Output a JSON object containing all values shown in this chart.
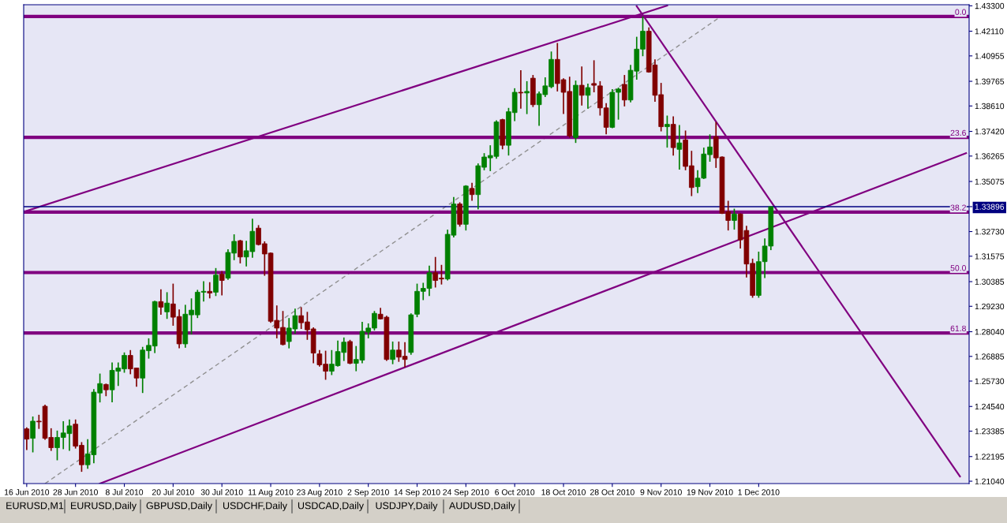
{
  "chart_data": {
    "type": "candlestick",
    "categories": [
      "16 Jun 2010",
      null,
      null,
      null,
      null,
      null,
      null,
      null,
      "28 Jun 2010",
      null,
      null,
      null,
      null,
      null,
      null,
      null,
      "8 Jul 2010",
      null,
      null,
      null,
      null,
      null,
      null,
      null,
      "20 Jul 2010",
      null,
      null,
      null,
      null,
      null,
      null,
      null,
      "30 Jul 2010",
      null,
      null,
      null,
      null,
      null,
      null,
      null,
      "11 Aug 2010",
      null,
      null,
      null,
      null,
      null,
      null,
      null,
      "23 Aug 2010",
      null,
      null,
      null,
      null,
      null,
      null,
      null,
      "2 Sep 2010",
      null,
      null,
      null,
      null,
      null,
      null,
      null,
      "14 Sep 2010",
      null,
      null,
      null,
      null,
      null,
      null,
      null,
      "24 Sep 2010",
      null,
      null,
      null,
      null,
      null,
      null,
      null,
      "6 Oct 2010",
      null,
      null,
      null,
      null,
      null,
      null,
      null,
      "18 Oct 2010",
      null,
      null,
      null,
      null,
      null,
      null,
      null,
      "28 Oct 2010",
      null,
      null,
      null,
      null,
      null,
      null,
      null,
      "9 Nov 2010",
      null,
      null,
      null,
      null,
      null,
      null,
      null,
      "19 Nov 2010",
      null,
      null,
      null,
      null,
      null,
      null,
      null,
      "1 Dec 2010",
      null,
      null,
      null,
      null,
      null,
      null,
      null,
      null,
      null,
      null,
      null,
      null,
      null,
      null,
      null,
      null,
      null,
      null,
      null,
      null,
      null,
      null,
      null,
      null,
      null,
      null,
      null,
      null,
      null,
      null,
      null,
      null,
      null,
      null
    ],
    "ohlc": [
      [
        1.2349,
        1.2356,
        1.225,
        1.2301
      ],
      [
        1.2305,
        1.2407,
        1.2239,
        1.2385
      ],
      [
        1.2385,
        1.2415,
        1.2349,
        1.2382
      ],
      [
        1.2455,
        1.2462,
        1.2298,
        1.2305
      ],
      [
        1.2309,
        1.2352,
        1.2246,
        1.2261
      ],
      [
        1.2261,
        1.2341,
        1.2202,
        1.2309
      ],
      [
        1.2309,
        1.2385,
        1.2254,
        1.233
      ],
      [
        1.2327,
        1.2393,
        1.2246,
        1.2363
      ],
      [
        1.2371,
        1.2393,
        1.2257,
        1.2268
      ],
      [
        1.2272,
        1.2287,
        1.2148,
        1.2181
      ],
      [
        1.2181,
        1.2301,
        1.2162,
        1.2232
      ],
      [
        1.2228,
        1.2535,
        1.2188,
        1.2521
      ],
      [
        1.2517,
        1.2608,
        1.2473,
        1.2561
      ],
      [
        1.2557,
        1.2561,
        1.2502,
        1.2532
      ],
      [
        1.2532,
        1.266,
        1.2473,
        1.2623
      ],
      [
        1.2619,
        1.266,
        1.255,
        1.2634
      ],
      [
        1.263,
        1.2707,
        1.2612,
        1.2693
      ],
      [
        1.2693,
        1.2718,
        1.2605,
        1.263
      ],
      [
        1.2634,
        1.2634,
        1.2546,
        1.2587
      ],
      [
        1.2587,
        1.2733,
        1.2517,
        1.2718
      ],
      [
        1.2715,
        1.2773,
        1.2678,
        1.274
      ],
      [
        1.2737,
        1.2949,
        1.2704,
        1.2945
      ],
      [
        1.2945,
        1.3003,
        1.2883,
        1.2919
      ],
      [
        1.2897,
        1.2989,
        1.2864,
        1.2938
      ],
      [
        1.2934,
        1.3029,
        1.2832,
        1.2872
      ],
      [
        1.2875,
        1.2908,
        1.2726,
        1.2747
      ],
      [
        1.2747,
        1.293,
        1.2729,
        1.2886
      ],
      [
        1.2883,
        1.296,
        1.2791,
        1.2905
      ],
      [
        1.2883,
        1.3,
        1.2868,
        1.2989
      ],
      [
        1.2989,
        1.304,
        1.2945,
        1.2993
      ],
      [
        1.2993,
        1.3036,
        1.296,
        1.2985
      ],
      [
        1.2989,
        1.3102,
        1.2971,
        1.3069
      ],
      [
        1.3073,
        1.3088,
        1.2974,
        1.3044
      ],
      [
        1.3055,
        1.319,
        1.3047,
        1.3175
      ],
      [
        1.3172,
        1.326,
        1.3139,
        1.3227
      ],
      [
        1.323,
        1.3234,
        1.3124,
        1.3154
      ],
      [
        1.3154,
        1.323,
        1.311,
        1.3183
      ],
      [
        1.3179,
        1.3333,
        1.315,
        1.3274
      ],
      [
        1.3289,
        1.3303,
        1.3208,
        1.3212
      ],
      [
        1.3216,
        1.3227,
        1.3066,
        1.3168
      ],
      [
        1.3172,
        1.3175,
        1.2846,
        1.2853
      ],
      [
        1.2857,
        1.2927,
        1.2773,
        1.2821
      ],
      [
        1.2824,
        1.2901,
        1.274,
        1.2744
      ],
      [
        1.2758,
        1.2868,
        1.2726,
        1.2821
      ],
      [
        1.2817,
        1.2912,
        1.2795,
        1.2879
      ],
      [
        1.2879,
        1.2919,
        1.2817,
        1.2846
      ],
      [
        1.285,
        1.2897,
        1.2766,
        1.2813
      ],
      [
        1.2817,
        1.2824,
        1.2656,
        1.2704
      ],
      [
        1.27,
        1.2718,
        1.2641,
        1.2649
      ],
      [
        1.2652,
        1.2715,
        1.2579,
        1.2619
      ],
      [
        1.2619,
        1.2718,
        1.2601,
        1.2652
      ],
      [
        1.2645,
        1.2762,
        1.2641,
        1.2711
      ],
      [
        1.2707,
        1.2777,
        1.2667,
        1.2755
      ],
      [
        1.2758,
        1.2766,
        1.2652,
        1.2656
      ],
      [
        1.2656,
        1.2737,
        1.2619,
        1.2674
      ],
      [
        1.2671,
        1.285,
        1.2656,
        1.2806
      ],
      [
        1.2802,
        1.2843,
        1.2773,
        1.2821
      ],
      [
        1.2821,
        1.2901,
        1.281,
        1.289
      ],
      [
        1.2886,
        1.2916,
        1.2861,
        1.2864
      ],
      [
        1.2872,
        1.2879,
        1.2667,
        1.2674
      ],
      [
        1.2674,
        1.2758,
        1.2652,
        1.2718
      ],
      [
        1.2718,
        1.2758,
        1.2663,
        1.2685
      ],
      [
        1.2689,
        1.2755,
        1.2638,
        1.2674
      ],
      [
        1.2707,
        1.289,
        1.2696,
        1.2883
      ],
      [
        1.2886,
        1.3029,
        1.2872,
        1.2993
      ],
      [
        1.2993,
        1.3033,
        1.2952,
        1.3007
      ],
      [
        1.3007,
        1.3113,
        1.2971,
        1.308
      ],
      [
        1.308,
        1.3154,
        1.3011,
        1.3044
      ],
      [
        1.3055,
        1.3117,
        1.3025,
        1.3051
      ],
      [
        1.3051,
        1.3282,
        1.3044,
        1.326
      ],
      [
        1.3256,
        1.3435,
        1.3245,
        1.3402
      ],
      [
        1.3402,
        1.341,
        1.3296,
        1.3307
      ],
      [
        1.3307,
        1.349,
        1.3278,
        1.3486
      ],
      [
        1.3475,
        1.3501,
        1.3417,
        1.3446
      ],
      [
        1.3446,
        1.3592,
        1.3377,
        1.3581
      ],
      [
        1.3574,
        1.364,
        1.356,
        1.3622
      ],
      [
        1.3618,
        1.3677,
        1.3556,
        1.3629
      ],
      [
        1.3625,
        1.3794,
        1.3614,
        1.3786
      ],
      [
        1.3797,
        1.3801,
        1.3658,
        1.3677
      ],
      [
        1.3677,
        1.3852,
        1.3629,
        1.3834
      ],
      [
        1.383,
        1.3944,
        1.379,
        1.3925
      ],
      [
        1.3925,
        1.4028,
        1.3848,
        1.3922
      ],
      [
        1.3922,
        1.3977,
        1.3823,
        1.3929
      ],
      [
        1.3991,
        1.4006,
        1.3856,
        1.3867
      ],
      [
        1.3867,
        1.3929,
        1.3768,
        1.3918
      ],
      [
        1.3914,
        1.3995,
        1.3903,
        1.3955
      ],
      [
        1.3951,
        1.4116,
        1.3944,
        1.4079
      ],
      [
        1.4079,
        1.4156,
        1.3929,
        1.3966
      ],
      [
        1.3984,
        1.3991,
        1.3823,
        1.3925
      ],
      [
        1.3929,
        1.3998,
        1.3713,
        1.3721
      ],
      [
        1.3713,
        1.398,
        1.3688,
        1.3958
      ],
      [
        1.3958,
        1.4046,
        1.3863,
        1.3911
      ],
      [
        1.3911,
        1.3966,
        1.3848,
        1.3947
      ],
      [
        1.3966,
        1.4075,
        1.3925,
        1.3958
      ],
      [
        1.3955,
        1.3977,
        1.3816,
        1.3852
      ],
      [
        1.3852,
        1.3874,
        1.3728,
        1.3761
      ],
      [
        1.3761,
        1.394,
        1.3757,
        1.3925
      ],
      [
        1.3925,
        1.3947,
        1.3797,
        1.394
      ],
      [
        1.3962,
        1.4006,
        1.3859,
        1.3889
      ],
      [
        1.3889,
        1.4053,
        1.3878,
        1.4028
      ],
      [
        1.4024,
        1.4185,
        1.3984,
        1.4127
      ],
      [
        1.4127,
        1.428,
        1.4094,
        1.4211
      ],
      [
        1.4211,
        1.4229,
        1.4017,
        1.402
      ],
      [
        1.4053,
        1.4079,
        1.3881,
        1.3911
      ],
      [
        1.3914,
        1.3969,
        1.3742,
        1.3764
      ],
      [
        1.3764,
        1.3816,
        1.3666,
        1.3775
      ],
      [
        1.3775,
        1.3812,
        1.3629,
        1.3666
      ],
      [
        1.3658,
        1.3772,
        1.3563,
        1.3688
      ],
      [
        1.3702,
        1.3746,
        1.356,
        1.3578
      ],
      [
        1.3581,
        1.3651,
        1.3439,
        1.3479
      ],
      [
        1.3483,
        1.356,
        1.3453,
        1.3523
      ],
      [
        1.3523,
        1.3666,
        1.3519,
        1.3636
      ],
      [
        1.3633,
        1.3728,
        1.36,
        1.3669
      ],
      [
        1.3717,
        1.3786,
        1.3571,
        1.3618
      ],
      [
        1.3622,
        1.3625,
        1.3355,
        1.3358
      ],
      [
        1.3366,
        1.3417,
        1.3278,
        1.3325
      ],
      [
        1.3325,
        1.338,
        1.3282,
        1.3355
      ],
      [
        1.3355,
        1.3358,
        1.3194,
        1.3234
      ],
      [
        1.3278,
        1.33,
        1.3058,
        1.3121
      ],
      [
        1.3124,
        1.3146,
        1.2963,
        1.2974
      ],
      [
        1.2974,
        1.3179,
        1.2963,
        1.3132
      ],
      [
        1.3132,
        1.3241,
        1.3055,
        1.3205
      ],
      [
        1.3205,
        1.33896,
        1.3186,
        1.33896
      ],
      null,
      null,
      null,
      null,
      null,
      null,
      null,
      null,
      null,
      null,
      null,
      null,
      null,
      null,
      null,
      null,
      null,
      null,
      null,
      null,
      null,
      null,
      null,
      null,
      null,
      null,
      null,
      null,
      null,
      null,
      null,
      null
    ],
    "series": [
      {
        "type": "line",
        "color": "#800080",
        "line_style": "solid",
        "values": [
          1.337,
          null,
          null,
          null,
          null,
          null,
          null,
          null,
          null,
          null,
          null,
          null,
          null,
          null,
          null,
          null,
          null,
          null,
          null,
          null,
          null,
          null,
          null,
          null,
          null,
          null,
          null,
          null,
          null,
          null,
          null,
          null,
          null,
          null,
          null,
          null,
          null,
          null,
          null,
          null,
          null,
          null,
          null,
          null,
          null,
          null,
          null,
          null,
          null,
          null,
          null,
          null,
          null,
          null,
          null,
          null,
          null,
          null,
          null,
          null,
          null,
          null,
          null,
          null,
          null,
          null,
          null,
          null,
          null,
          null,
          null,
          null,
          null,
          null,
          null,
          null,
          null,
          null,
          null,
          null,
          null,
          null,
          null,
          null,
          null,
          null,
          null,
          null,
          null,
          null,
          null,
          null,
          null,
          null,
          null,
          null,
          null,
          null,
          null,
          null,
          null,
          null,
          null,
          null,
          null,
          1.4331,
          null,
          null,
          null,
          null,
          null,
          null,
          null,
          null,
          null,
          null,
          null,
          null,
          null,
          null,
          null,
          null,
          null,
          null,
          null,
          null,
          null,
          null,
          null,
          null,
          null,
          null,
          null,
          null,
          null,
          null,
          null,
          null,
          null,
          null,
          null,
          null,
          null,
          null,
          null,
          null,
          null,
          null,
          null,
          null,
          null,
          null,
          null,
          null,
          null
        ]
      },
      {
        "type": "line",
        "color": "#800080",
        "line_style": "solid",
        "values": [
          null,
          null,
          null,
          null,
          null,
          null,
          null,
          null,
          null,
          null,
          null,
          null,
          1.2093,
          null,
          null,
          null,
          null,
          null,
          null,
          null,
          null,
          null,
          null,
          null,
          null,
          null,
          null,
          null,
          null,
          null,
          null,
          null,
          null,
          null,
          null,
          null,
          null,
          null,
          null,
          null,
          null,
          null,
          null,
          null,
          null,
          null,
          null,
          null,
          null,
          null,
          null,
          null,
          null,
          null,
          null,
          null,
          null,
          null,
          null,
          null,
          null,
          null,
          null,
          null,
          null,
          null,
          null,
          null,
          null,
          null,
          null,
          null,
          null,
          null,
          null,
          null,
          null,
          null,
          null,
          null,
          null,
          null,
          null,
          null,
          null,
          null,
          null,
          null,
          null,
          null,
          null,
          null,
          null,
          null,
          null,
          null,
          null,
          null,
          null,
          null,
          null,
          null,
          null,
          null,
          null,
          null,
          null,
          null,
          null,
          null,
          null,
          null,
          null,
          null,
          null,
          null,
          null,
          null,
          null,
          null,
          null,
          null,
          null,
          null,
          null,
          null,
          null,
          null,
          null,
          null,
          null,
          null,
          null,
          null,
          null,
          null,
          null,
          null,
          null,
          null,
          null,
          null,
          null,
          null,
          null,
          null,
          null,
          null,
          null,
          null,
          null,
          null,
          null,
          null,
          1.364
        ]
      },
      {
        "type": "line",
        "color": "#800080",
        "line_style": "solid",
        "values": [
          null,
          null,
          null,
          null,
          null,
          null,
          null,
          null,
          null,
          null,
          null,
          null,
          null,
          null,
          null,
          null,
          null,
          null,
          null,
          null,
          null,
          null,
          null,
          null,
          null,
          null,
          null,
          null,
          null,
          null,
          null,
          null,
          null,
          null,
          null,
          null,
          null,
          null,
          null,
          null,
          null,
          null,
          null,
          null,
          null,
          null,
          null,
          null,
          null,
          null,
          null,
          null,
          null,
          null,
          null,
          null,
          null,
          null,
          null,
          null,
          null,
          null,
          null,
          null,
          null,
          null,
          null,
          null,
          null,
          null,
          null,
          null,
          null,
          null,
          null,
          null,
          null,
          null,
          null,
          null,
          null,
          null,
          null,
          null,
          null,
          null,
          null,
          null,
          null,
          null,
          null,
          null,
          null,
          null,
          null,
          null,
          null,
          null,
          null,
          null,
          1.4328,
          null,
          null,
          null,
          null,
          null,
          null,
          null,
          null,
          null,
          null,
          null,
          null,
          null,
          null,
          null,
          null,
          null,
          null,
          null,
          null,
          null,
          null,
          null,
          null,
          null,
          null,
          null,
          null,
          null,
          null,
          null,
          null,
          null,
          null,
          null,
          null,
          null,
          null,
          null,
          null,
          null,
          null,
          null,
          null,
          null,
          null,
          null,
          null,
          null,
          null,
          null,
          null,
          1.2126,
          null
        ]
      },
      {
        "type": "line",
        "color": "#909090",
        "line_style": "dashed",
        "values": [
          null,
          null,
          null,
          1.2093,
          null,
          null,
          null,
          null,
          null,
          null,
          null,
          null,
          null,
          null,
          null,
          null,
          null,
          null,
          null,
          null,
          null,
          null,
          null,
          null,
          null,
          null,
          null,
          null,
          null,
          null,
          null,
          null,
          null,
          null,
          null,
          null,
          null,
          null,
          null,
          null,
          null,
          null,
          null,
          null,
          null,
          null,
          null,
          null,
          null,
          null,
          null,
          null,
          null,
          null,
          null,
          null,
          null,
          null,
          null,
          null,
          null,
          null,
          null,
          null,
          null,
          null,
          null,
          null,
          null,
          null,
          null,
          null,
          null,
          null,
          null,
          null,
          null,
          null,
          null,
          null,
          null,
          null,
          null,
          null,
          null,
          null,
          null,
          null,
          null,
          null,
          null,
          null,
          null,
          null,
          null,
          null,
          null,
          null,
          null,
          null,
          null,
          null,
          null,
          null,
          null,
          null,
          null,
          null,
          null,
          null,
          null,
          null,
          null,
          null,
          1.4284,
          null,
          null,
          null,
          null,
          null,
          null,
          null,
          null,
          null,
          null,
          null,
          null,
          null,
          null,
          null,
          null,
          null,
          null,
          null,
          null,
          null,
          null,
          null,
          null,
          null,
          null,
          null,
          null,
          null,
          null,
          null,
          null,
          null,
          null,
          null,
          null,
          null,
          null,
          null,
          null
        ]
      }
    ],
    "ylim": [
      1.2093,
      1.4335
    ],
    "yticks": [
      {
        "value": 1.433,
        "label": "1.43300"
      },
      {
        "value": 1.4211,
        "label": "1.42110"
      },
      {
        "value": 1.40955,
        "label": "1.40955"
      },
      {
        "value": 1.39765,
        "label": "1.39765"
      },
      {
        "value": 1.3861,
        "label": "1.38610"
      },
      {
        "value": 1.3742,
        "label": "1.37420"
      },
      {
        "value": 1.36265,
        "label": "1.36265"
      },
      {
        "value": 1.35075,
        "label": "1.35075"
      },
      {
        "value": 1.33896,
        "label": "1.33896"
      },
      {
        "value": 1.3273,
        "label": "1.32730"
      },
      {
        "value": 1.31575,
        "label": "1.31575"
      },
      {
        "value": 1.30385,
        "label": "1.30385"
      },
      {
        "value": 1.2923,
        "label": "1.29230"
      },
      {
        "value": 1.2804,
        "label": "1.28040"
      },
      {
        "value": 1.26885,
        "label": "1.26885"
      },
      {
        "value": 1.2573,
        "label": "1.25730"
      },
      {
        "value": 1.2454,
        "label": "1.24540"
      },
      {
        "value": 1.23385,
        "label": "1.23385"
      },
      {
        "value": 1.22195,
        "label": "1.22195"
      },
      {
        "value": 1.2104,
        "label": "1.21040"
      }
    ],
    "ref_lines": [
      {
        "axis": "y",
        "value": 1.428,
        "color": "#800080",
        "line_style": "solid"
      },
      {
        "axis": "y",
        "value": 1.3714,
        "color": "#800080",
        "line_style": "solid"
      },
      {
        "axis": "y",
        "value": 1.3364,
        "color": "#800080",
        "line_style": "solid"
      },
      {
        "axis": "y",
        "value": 1.3081,
        "color": "#800080",
        "line_style": "solid"
      },
      {
        "axis": "y",
        "value": 1.2798,
        "color": "#800080",
        "line_style": "solid"
      },
      {
        "axis": "y",
        "value": 1.33896,
        "color": "#000080"
      }
    ],
    "grid": false,
    "annotations": [
      {
        "text": "0.0",
        "y": 1.428
      },
      {
        "text": "23.6",
        "y": 1.3714
      },
      {
        "text": "38.2",
        "y": 1.3364
      },
      {
        "text": "50.0",
        "y": 1.3081
      },
      {
        "text": "61.8",
        "y": 1.2798
      },
      "EURUSD,M1",
      "EURUSD,Daily",
      "GBPUSD,Daily",
      "USDCHF,Daily",
      "USDCAD,Daily",
      "USDJPY,Daily",
      "AUDUSD,Daily"
    ]
  }
}
